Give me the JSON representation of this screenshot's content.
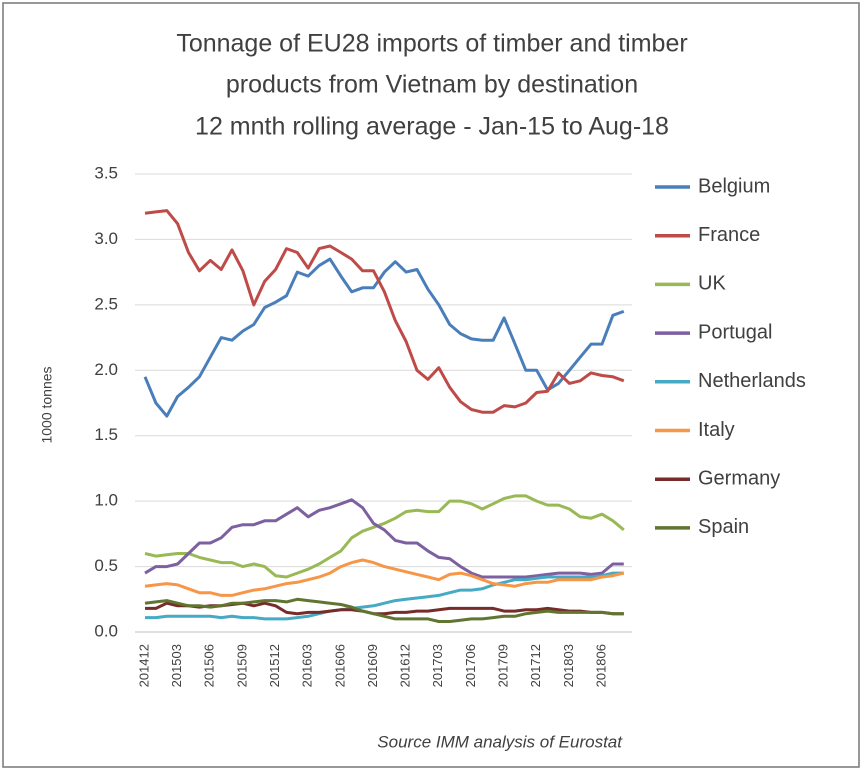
{
  "chart_data": {
    "type": "line",
    "title": [
      "Tonnage of EU28 imports of timber and timber",
      "products from Vietnam by destination",
      "12 mnth rolling average - Jan-15 to Aug-18"
    ],
    "y_label": "1000 tonnes",
    "source": "Source IMM analysis of Eurostat",
    "categories": [
      "201412",
      null,
      null,
      "201503",
      null,
      null,
      "201506",
      null,
      null,
      "201509",
      null,
      null,
      "201512",
      null,
      null,
      "201603",
      null,
      null,
      "201606",
      null,
      null,
      "201609",
      null,
      null,
      "201612",
      null,
      null,
      "201703",
      null,
      null,
      "201706",
      null,
      null,
      "201709",
      null,
      null,
      "201712",
      null,
      null,
      "201803",
      null,
      null,
      "201806",
      null,
      null
    ],
    "ylim": [
      0,
      3.5
    ],
    "yticks": [
      {
        "value": 0,
        "label": "0.0"
      },
      0.5,
      {
        "value": 1,
        "label": "1.0"
      },
      1.5,
      {
        "value": 2,
        "label": "2.0"
      },
      2.5,
      {
        "value": 3,
        "label": "3.0"
      },
      3.5
    ],
    "grid": true,
    "legend": "right",
    "series": [
      {
        "name": "Belgium",
        "color": "#4a7ebb",
        "values": [
          1.95,
          1.75,
          1.65,
          1.8,
          1.87,
          1.95,
          2.1,
          2.25,
          2.23,
          2.3,
          2.35,
          2.48,
          2.52,
          2.57,
          2.75,
          2.72,
          2.8,
          2.85,
          2.72,
          2.6,
          2.63,
          2.63,
          2.75,
          2.83,
          2.75,
          2.77,
          2.62,
          2.5,
          2.35,
          2.28,
          2.24,
          2.23,
          2.23,
          2.4,
          2.2,
          2.0,
          2.0,
          1.85,
          1.9,
          2.0,
          2.1,
          2.2,
          2.2,
          2.42,
          2.45
        ]
      },
      {
        "name": "France",
        "color": "#be4b48",
        "values": [
          3.2,
          3.21,
          3.22,
          3.12,
          2.9,
          2.76,
          2.84,
          2.77,
          2.92,
          2.76,
          2.5,
          2.68,
          2.77,
          2.93,
          2.9,
          2.78,
          2.93,
          2.95,
          2.9,
          2.85,
          2.76,
          2.76,
          2.6,
          2.38,
          2.22,
          2.0,
          1.93,
          2.02,
          1.87,
          1.76,
          1.7,
          1.68,
          1.68,
          1.73,
          1.72,
          1.75,
          1.83,
          1.84,
          1.98,
          1.9,
          1.92,
          1.98,
          1.96,
          1.95,
          1.92
        ]
      },
      {
        "name": "UK",
        "color": "#98b954",
        "values": [
          0.6,
          0.58,
          0.59,
          0.6,
          0.6,
          0.57,
          0.55,
          0.53,
          0.53,
          0.5,
          0.52,
          0.5,
          0.43,
          0.42,
          0.45,
          0.48,
          0.52,
          0.57,
          0.62,
          0.72,
          0.77,
          0.8,
          0.83,
          0.87,
          0.92,
          0.93,
          0.92,
          0.92,
          1.0,
          1.0,
          0.98,
          0.94,
          0.98,
          1.02,
          1.04,
          1.04,
          1.0,
          0.97,
          0.97,
          0.94,
          0.88,
          0.87,
          0.9,
          0.85,
          0.78
        ]
      },
      {
        "name": "Portugal",
        "color": "#7d60a0",
        "values": [
          0.45,
          0.5,
          0.5,
          0.52,
          0.6,
          0.68,
          0.68,
          0.72,
          0.8,
          0.82,
          0.82,
          0.85,
          0.85,
          0.9,
          0.95,
          0.88,
          0.93,
          0.95,
          0.98,
          1.01,
          0.95,
          0.83,
          0.78,
          0.7,
          0.68,
          0.68,
          0.62,
          0.57,
          0.56,
          0.5,
          0.45,
          0.42,
          0.42,
          0.42,
          0.42,
          0.42,
          0.43,
          0.44,
          0.45,
          0.45,
          0.45,
          0.44,
          0.45,
          0.52,
          0.52
        ]
      },
      {
        "name": "Netherlands",
        "color": "#46aac5",
        "values": [
          0.11,
          0.11,
          0.12,
          0.12,
          0.12,
          0.12,
          0.12,
          0.11,
          0.12,
          0.11,
          0.11,
          0.1,
          0.1,
          0.1,
          0.11,
          0.12,
          0.14,
          0.16,
          0.17,
          0.18,
          0.19,
          0.2,
          0.22,
          0.24,
          0.25,
          0.26,
          0.27,
          0.28,
          0.3,
          0.32,
          0.32,
          0.33,
          0.36,
          0.38,
          0.4,
          0.4,
          0.41,
          0.42,
          0.42,
          0.42,
          0.42,
          0.42,
          0.43,
          0.45,
          0.45
        ]
      },
      {
        "name": "Italy",
        "color": "#f79646",
        "values": [
          0.35,
          0.36,
          0.37,
          0.36,
          0.33,
          0.3,
          0.3,
          0.28,
          0.28,
          0.3,
          0.32,
          0.33,
          0.35,
          0.37,
          0.38,
          0.4,
          0.42,
          0.45,
          0.5,
          0.53,
          0.55,
          0.53,
          0.5,
          0.48,
          0.46,
          0.44,
          0.42,
          0.4,
          0.44,
          0.45,
          0.43,
          0.4,
          0.37,
          0.36,
          0.35,
          0.37,
          0.38,
          0.38,
          0.4,
          0.4,
          0.4,
          0.4,
          0.42,
          0.43,
          0.45
        ]
      },
      {
        "name": "Germany",
        "color": "#772c2a",
        "values": [
          0.18,
          0.18,
          0.22,
          0.2,
          0.2,
          0.19,
          0.2,
          0.2,
          0.21,
          0.22,
          0.2,
          0.22,
          0.2,
          0.15,
          0.14,
          0.15,
          0.15,
          0.16,
          0.17,
          0.17,
          0.16,
          0.14,
          0.14,
          0.15,
          0.15,
          0.16,
          0.16,
          0.17,
          0.18,
          0.18,
          0.18,
          0.18,
          0.18,
          0.16,
          0.16,
          0.17,
          0.17,
          0.18,
          0.17,
          0.16,
          0.16,
          0.15,
          0.15,
          0.14,
          0.14
        ]
      },
      {
        "name": "Spain",
        "color": "#5f7530",
        "values": [
          0.22,
          0.23,
          0.24,
          0.22,
          0.2,
          0.2,
          0.19,
          0.2,
          0.22,
          0.22,
          0.23,
          0.24,
          0.24,
          0.23,
          0.25,
          0.24,
          0.23,
          0.22,
          0.21,
          0.19,
          0.16,
          0.14,
          0.12,
          0.1,
          0.1,
          0.1,
          0.1,
          0.08,
          0.08,
          0.09,
          0.1,
          0.1,
          0.11,
          0.12,
          0.12,
          0.14,
          0.15,
          0.16,
          0.15,
          0.15,
          0.15,
          0.15,
          0.15,
          0.14,
          0.14
        ]
      }
    ]
  }
}
